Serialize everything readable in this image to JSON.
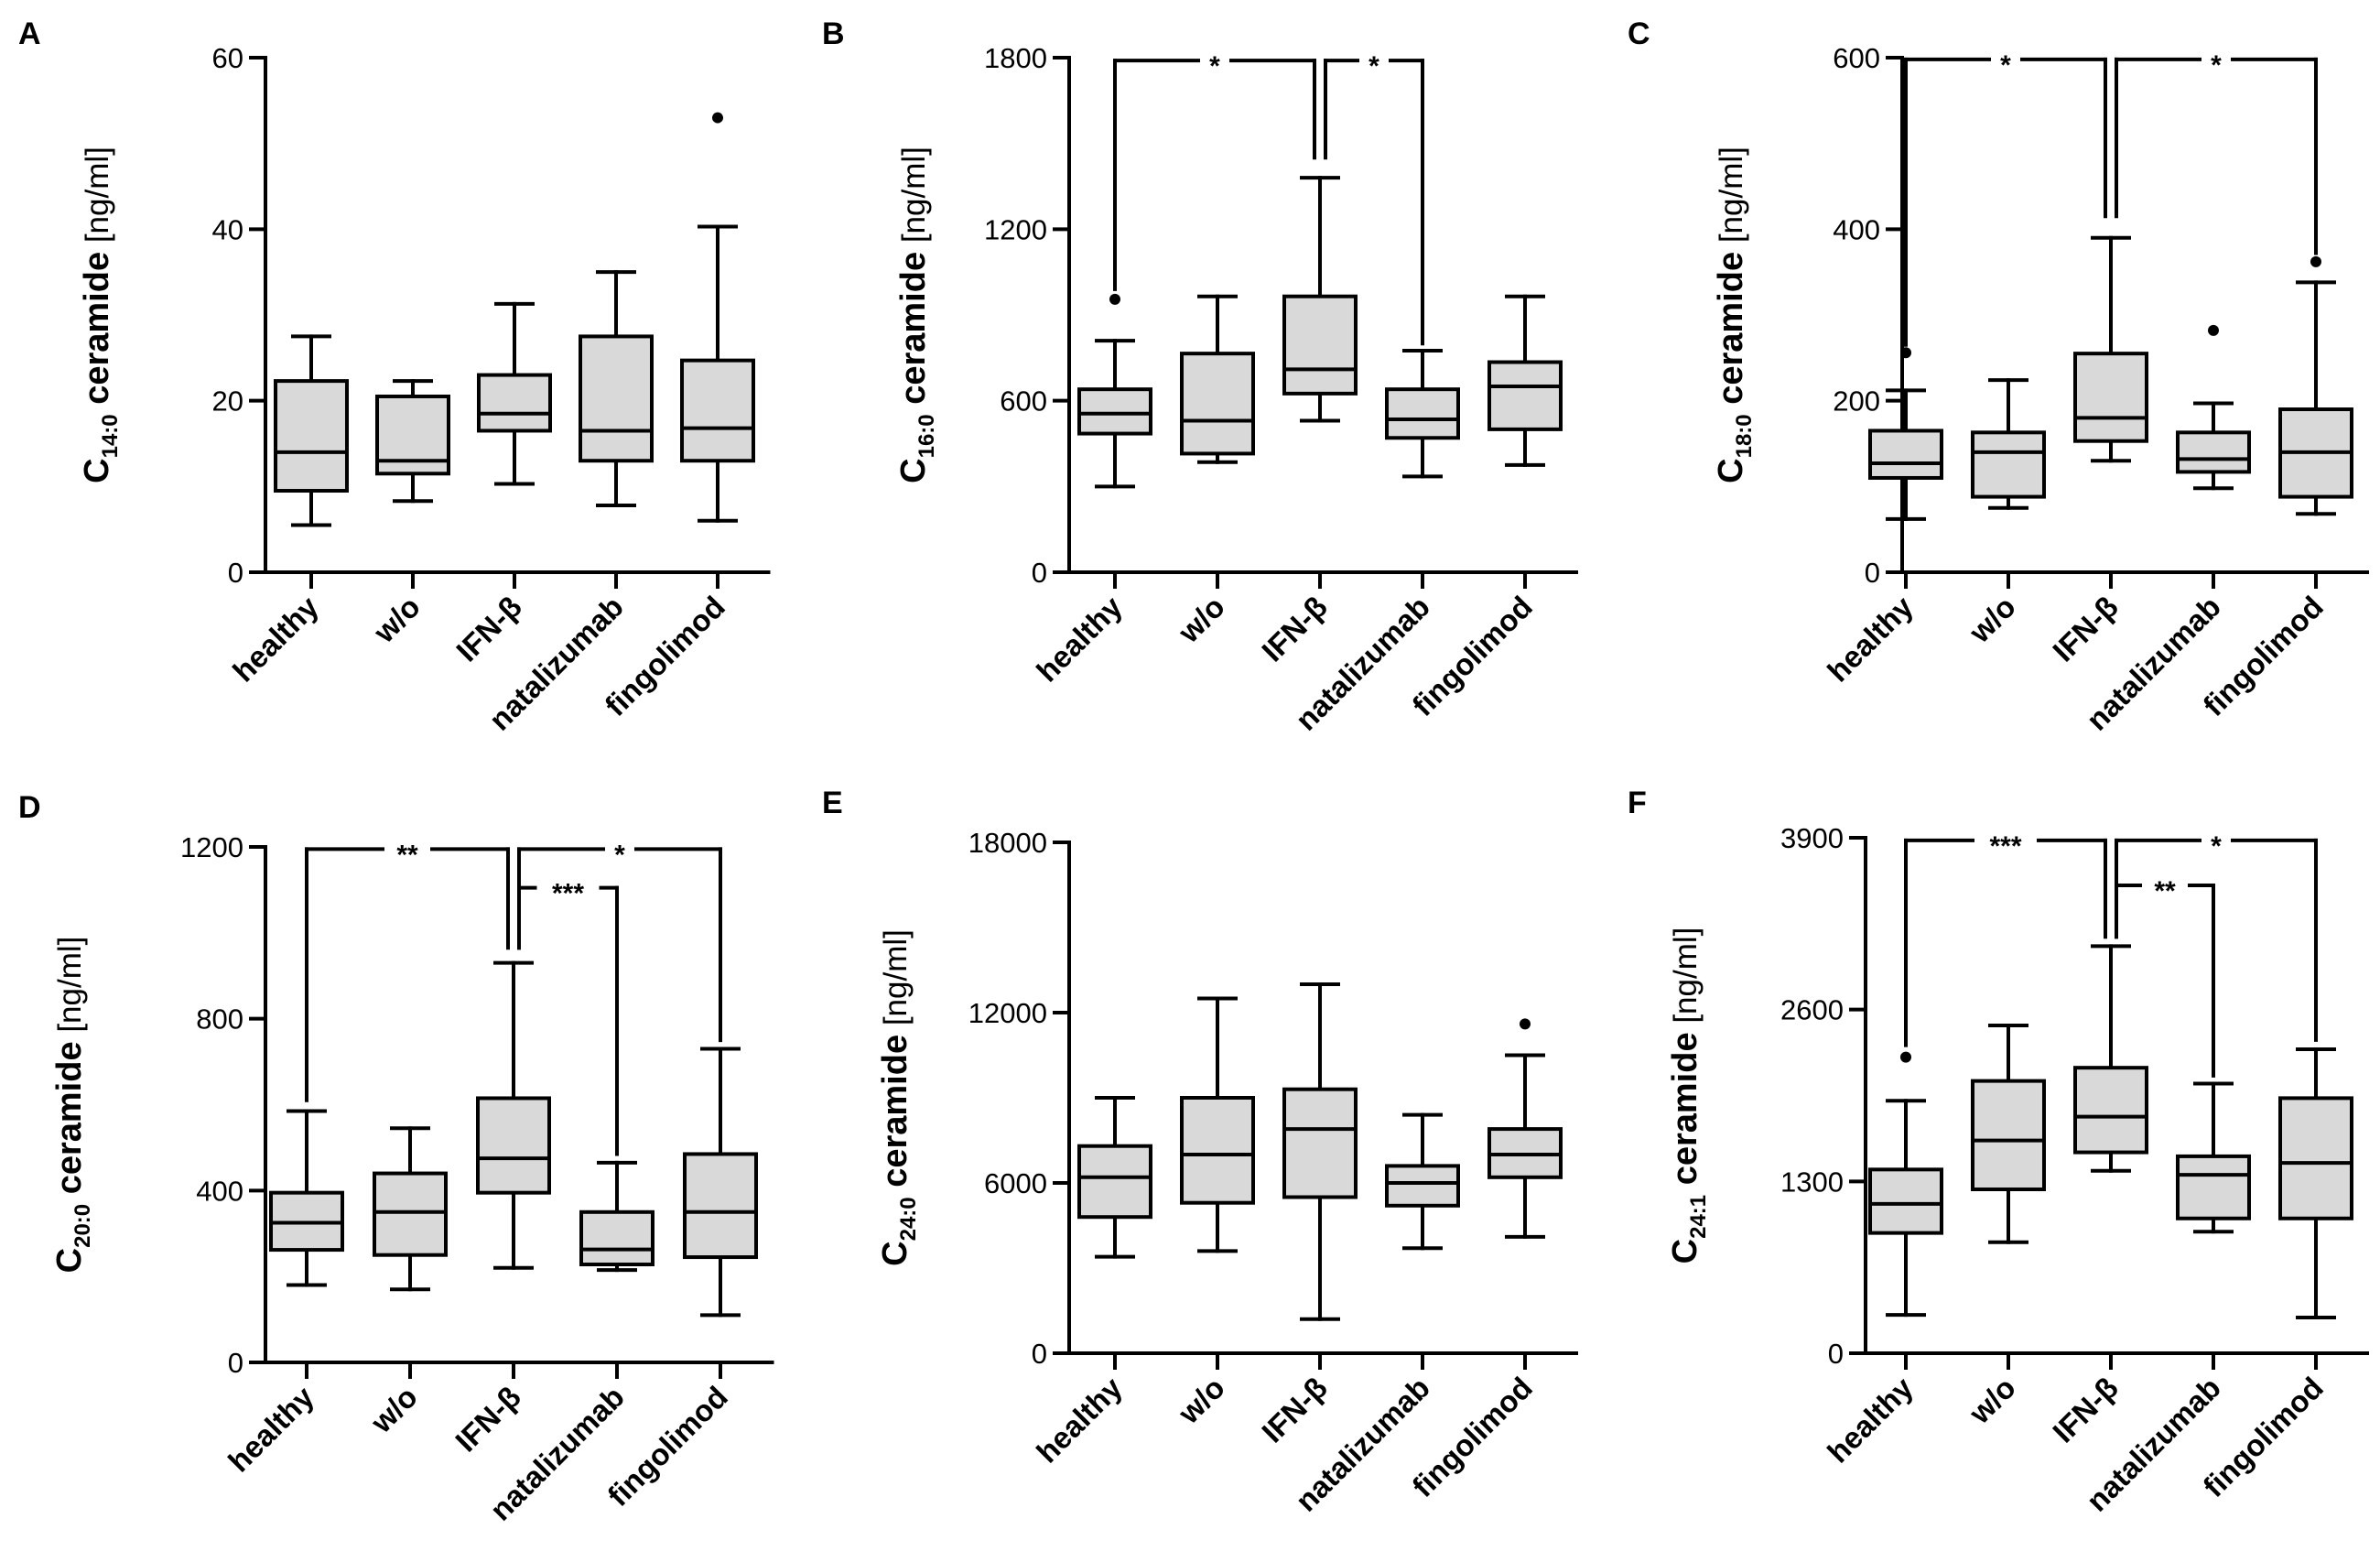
{
  "chart_data": [
    {
      "type": "box",
      "panel": "A",
      "ylabel": {
        "base": "C",
        "sub": "14:0",
        "main": " ceramide",
        "unit": " [ng/ml]"
      },
      "yticks": [
        0,
        20,
        40,
        60
      ],
      "ylim": [
        0,
        60
      ],
      "categories": [
        "healthy",
        "w/o",
        "IFN-β",
        "natalizumab",
        "fingolimod"
      ],
      "boxes": [
        {
          "min": 5.5,
          "q1": 9.5,
          "median": 14,
          "q3": 22.3,
          "max": 27.5
        },
        {
          "min": 8.3,
          "q1": 11.5,
          "median": 13,
          "q3": 20.5,
          "max": 22.3
        },
        {
          "min": 10.3,
          "q1": 16.5,
          "median": 18.5,
          "q3": 23,
          "max": 31.3
        },
        {
          "min": 7.8,
          "q1": 13,
          "median": 16.5,
          "q3": 27.5,
          "max": 35
        },
        {
          "min": 6,
          "q1": 13,
          "median": 16.8,
          "q3": 24.7,
          "max": 40.3
        }
      ],
      "outliers": [
        {
          "cat": 4,
          "value": 53
        }
      ],
      "significance": []
    },
    {
      "type": "box",
      "panel": "B",
      "ylabel": {
        "base": "C",
        "sub": "16:0",
        "main": " ceramide",
        "unit": " [ng/ml]"
      },
      "yticks": [
        0,
        600,
        1200,
        1800
      ],
      "ylim": [
        0,
        1800
      ],
      "categories": [
        "healthy",
        "w/o",
        "IFN-β",
        "natalizumab",
        "fingolimod"
      ],
      "boxes": [
        {
          "min": 300,
          "q1": 485,
          "median": 555,
          "q3": 640,
          "max": 810
        },
        {
          "min": 385,
          "q1": 415,
          "median": 530,
          "q3": 765,
          "max": 965
        },
        {
          "min": 530,
          "q1": 625,
          "median": 710,
          "q3": 965,
          "max": 1380
        },
        {
          "min": 335,
          "q1": 470,
          "median": 535,
          "q3": 640,
          "max": 775
        },
        {
          "min": 375,
          "q1": 500,
          "median": 650,
          "q3": 735,
          "max": 965
        }
      ],
      "outliers": [
        {
          "cat": 0,
          "value": 955
        }
      ],
      "significance": [
        {
          "from": 0,
          "to": 2,
          "label": "*",
          "level": 1790,
          "from_start": 990,
          "to_start": 1450
        },
        {
          "from": 2,
          "to": 3,
          "label": "*",
          "level": 1790,
          "from_start": 1450,
          "to_start": 800
        }
      ]
    },
    {
      "type": "box",
      "panel": "C",
      "ylabel": {
        "base": "C",
        "sub": "18:0",
        "main": " ceramide",
        "unit": " [ng/ml]"
      },
      "yticks": [
        0,
        200,
        400,
        600
      ],
      "ylim": [
        0,
        600
      ],
      "categories": [
        "healthy",
        "w/o",
        "IFN-β",
        "natalizumab",
        "fingolimod"
      ],
      "boxes": [
        {
          "min": 62,
          "q1": 110,
          "median": 127,
          "q3": 165,
          "max": 212
        },
        {
          "min": 75,
          "q1": 88,
          "median": 140,
          "q3": 163,
          "max": 224
        },
        {
          "min": 130,
          "q1": 153,
          "median": 180,
          "q3": 255,
          "max": 390
        },
        {
          "min": 98,
          "q1": 117,
          "median": 132,
          "q3": 163,
          "max": 197
        },
        {
          "min": 68,
          "q1": 88,
          "median": 140,
          "q3": 190,
          "max": 338
        }
      ],
      "outliers": [
        {
          "cat": 0,
          "value": 256
        },
        {
          "cat": 3,
          "value": 282
        },
        {
          "cat": 4,
          "value": 362
        }
      ],
      "significance": [
        {
          "from": 0,
          "to": 2,
          "label": "*",
          "level": 598,
          "from_start": 265,
          "to_start": 415
        },
        {
          "from": 2,
          "to": 4,
          "label": "*",
          "level": 598,
          "from_start": 415,
          "to_start": 372
        }
      ]
    },
    {
      "type": "box",
      "panel": "D",
      "ylabel": {
        "base": "C",
        "sub": "20:0",
        "main": " ceramide",
        "unit": " [ng/ml]"
      },
      "yticks": [
        0,
        400,
        800,
        1200
      ],
      "ylim": [
        0,
        1200
      ],
      "categories": [
        "healthy",
        "w/o",
        "IFN-β",
        "natalizumab",
        "fingolimod"
      ],
      "boxes": [
        {
          "min": 180,
          "q1": 262,
          "median": 325,
          "q3": 395,
          "max": 585
        },
        {
          "min": 170,
          "q1": 250,
          "median": 350,
          "q3": 440,
          "max": 545
        },
        {
          "min": 220,
          "q1": 395,
          "median": 475,
          "q3": 615,
          "max": 930
        },
        {
          "min": 215,
          "q1": 228,
          "median": 263,
          "q3": 350,
          "max": 465
        },
        {
          "min": 110,
          "q1": 245,
          "median": 350,
          "q3": 485,
          "max": 730
        }
      ],
      "outliers": [],
      "significance": [
        {
          "from": 0,
          "to": 2,
          "label": "**",
          "level": 1195,
          "from_start": 610,
          "to_start": 965
        },
        {
          "from": 2,
          "to": 4,
          "label": "*",
          "level": 1195,
          "from_start": 965,
          "to_start": 750
        },
        {
          "from": 2,
          "to": 3,
          "label": "***",
          "level": 1105,
          "from_start": 965,
          "to_start": 485
        }
      ]
    },
    {
      "type": "box",
      "panel": "E",
      "ylabel": {
        "base": "C",
        "sub": "24:0",
        "main": " ceramide",
        "unit": " [ng/ml]"
      },
      "yticks": [
        0,
        6000,
        12000,
        18000
      ],
      "ylim": [
        0,
        18000
      ],
      "categories": [
        "healthy",
        "w/o",
        "IFN-β",
        "natalizumab",
        "fingolimod"
      ],
      "boxes": [
        {
          "min": 3400,
          "q1": 4800,
          "median": 6200,
          "q3": 7300,
          "max": 9000
        },
        {
          "min": 3600,
          "q1": 5300,
          "median": 7000,
          "q3": 9000,
          "max": 12500
        },
        {
          "min": 1200,
          "q1": 5500,
          "median": 7900,
          "q3": 9300,
          "max": 13000
        },
        {
          "min": 3700,
          "q1": 5200,
          "median": 6000,
          "q3": 6600,
          "max": 8400
        },
        {
          "min": 4100,
          "q1": 6200,
          "median": 7000,
          "q3": 7900,
          "max": 10500
        }
      ],
      "outliers": [
        {
          "cat": 4,
          "value": 11600
        }
      ],
      "significance": []
    },
    {
      "type": "box",
      "panel": "F",
      "ylabel": {
        "base": "C",
        "sub": "24:1",
        "main": " ceramide",
        "unit": " [ng/ml]"
      },
      "yticks": [
        0,
        1300,
        2600,
        3900
      ],
      "ylim": [
        0,
        3900
      ],
      "categories": [
        "healthy",
        "w/o",
        "IFN-β",
        "natalizumab",
        "fingolimod"
      ],
      "boxes": [
        {
          "min": 290,
          "q1": 910,
          "median": 1130,
          "q3": 1390,
          "max": 1910
        },
        {
          "min": 840,
          "q1": 1240,
          "median": 1610,
          "q3": 2060,
          "max": 2480
        },
        {
          "min": 1380,
          "q1": 1520,
          "median": 1790,
          "q3": 2160,
          "max": 3080
        },
        {
          "min": 920,
          "q1": 1020,
          "median": 1350,
          "q3": 1490,
          "max": 2040
        },
        {
          "min": 270,
          "q1": 1020,
          "median": 1440,
          "q3": 1930,
          "max": 2300
        }
      ],
      "outliers": [
        {
          "cat": 0,
          "value": 2240
        }
      ],
      "significance": [
        {
          "from": 0,
          "to": 2,
          "label": "***",
          "level": 3880,
          "from_start": 2330,
          "to_start": 3150
        },
        {
          "from": 2,
          "to": 4,
          "label": "*",
          "level": 3880,
          "from_start": 3150,
          "to_start": 2370
        },
        {
          "from": 2,
          "to": 3,
          "label": "**",
          "level": 3540,
          "from_start": 3150,
          "to_start": 2100
        }
      ]
    }
  ]
}
